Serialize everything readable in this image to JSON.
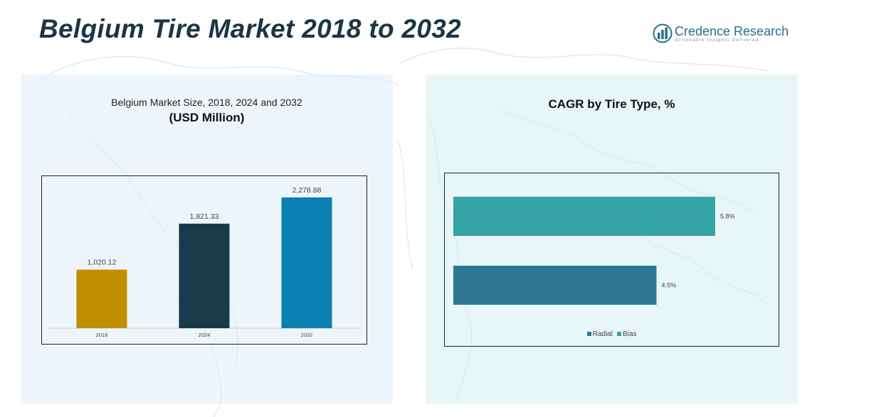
{
  "header": {
    "title": "Belgium Tire Market 2018 to 2032"
  },
  "logo": {
    "name_part1": "Credence",
    "name_part2": " Research",
    "tagline": "Actionable Insights Delivered",
    "icon": "bar-chart-logo-icon"
  },
  "colors": {
    "title": "#1c3545",
    "bar_2018": "#c08f00",
    "bar_2024": "#173b4a",
    "bar_2032": "#0a7fb1",
    "radial": "#2e7896",
    "bias": "#34a3a5"
  },
  "left_panel": {
    "subtitle": "Belgium Market Size, 2018, 2024 and 2032",
    "unit": "(USD Million)"
  },
  "right_panel": {
    "title": "CAGR by Tire Type, %"
  },
  "chart_data": [
    {
      "type": "bar",
      "title": "Belgium Market Size, 2018, 2024 and 2032",
      "ylabel": "(USD Million)",
      "categories": [
        "2018",
        "2024",
        "2032"
      ],
      "values": [
        1020.12,
        1821.33,
        2278.88
      ],
      "labels": [
        "1,020.12",
        "1,821.33",
        "2,278.88"
      ],
      "colors": [
        "#c08f00",
        "#173b4a",
        "#0a7fb1"
      ],
      "ylim": [
        0,
        2500
      ],
      "grid": false
    },
    {
      "type": "bar",
      "orientation": "horizontal",
      "title": "CAGR by Tire Type, %",
      "series": [
        {
          "name": "Bias",
          "value": 5.8,
          "label": "5.8%",
          "color": "#34a3a5"
        },
        {
          "name": "Radial",
          "value": 4.5,
          "label": "4.5%",
          "color": "#2e7896"
        }
      ],
      "xlim": [
        0,
        6.4
      ],
      "legend": [
        "Radial",
        "Bias"
      ],
      "legend_position": "bottom",
      "grid": false
    }
  ]
}
